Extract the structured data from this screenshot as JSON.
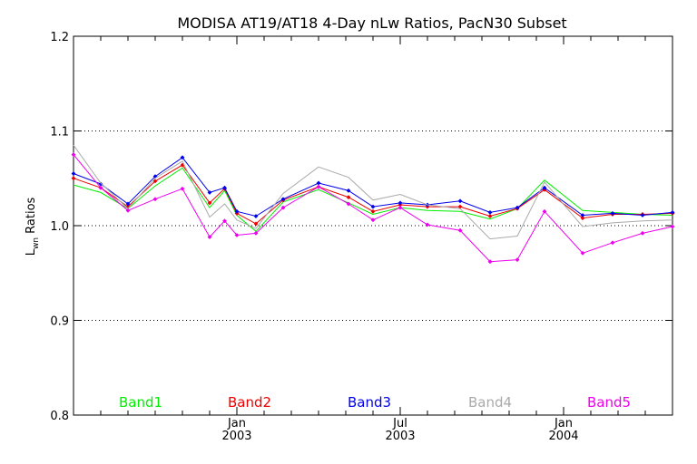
{
  "chart_data": {
    "type": "line",
    "title": "MODISA AT19/AT18 4-Day nLw Ratios, PacN30 Subset",
    "ylabel": "Lwn Ratios",
    "ylabel_main": "L",
    "ylabel_sub": "wn",
    "ylabel_rest": " Ratios",
    "xlabel": "",
    "ylim": [
      0.8,
      1.2
    ],
    "xlim": [
      0,
      22
    ],
    "yticks": [
      {
        "value": 0.8,
        "label": "0.8"
      },
      {
        "value": 0.9,
        "label": "0.9"
      },
      {
        "value": 1.0,
        "label": "1.0"
      },
      {
        "value": 1.1,
        "label": "1.1"
      },
      {
        "value": 1.2,
        "label": "1.2"
      }
    ],
    "grid_y": [
      0.9,
      1.0,
      1.1
    ],
    "grid": "dotted horizontal",
    "xtick_major": [
      {
        "x": 6,
        "label1": "Jan",
        "label2": "2003"
      },
      {
        "x": 12,
        "label1": "Jul",
        "label2": "2003"
      },
      {
        "x": 18,
        "label1": "Jan",
        "label2": "2004"
      }
    ],
    "xtick_minor": [
      1,
      2,
      3,
      4,
      5,
      7,
      8,
      9,
      10,
      11,
      13,
      14,
      15,
      16,
      17,
      19,
      20,
      21
    ],
    "x": [
      0,
      1,
      2,
      3,
      4,
      5,
      5.55,
      6,
      6.7,
      7.7,
      9,
      10.1,
      11,
      12,
      13,
      14.2,
      15.3,
      16.3,
      17.3,
      18.7,
      19.8,
      20.9,
      22
    ],
    "legend_position": "bottom",
    "series": [
      {
        "name": "Band1",
        "color": "#00ee00",
        "marker": false,
        "values": [
          1.043,
          1.035,
          1.018,
          1.042,
          1.061,
          1.019,
          1.037,
          1.011,
          0.994,
          1.025,
          1.038,
          1.024,
          1.012,
          1.019,
          1.016,
          1.015,
          1.007,
          1.018,
          1.048,
          1.016,
          1.014,
          1.012,
          1.011
        ]
      },
      {
        "name": "Band2",
        "color": "#ee0000",
        "marker": true,
        "values": [
          1.05,
          1.04,
          1.02,
          1.047,
          1.064,
          1.024,
          1.039,
          1.013,
          1.002,
          1.027,
          1.041,
          1.03,
          1.015,
          1.022,
          1.02,
          1.02,
          1.01,
          1.018,
          1.038,
          1.008,
          1.012,
          1.012,
          1.013
        ]
      },
      {
        "name": "Band3",
        "color": "#0000ee",
        "marker": true,
        "values": [
          1.055,
          1.044,
          1.023,
          1.052,
          1.072,
          1.035,
          1.04,
          1.015,
          1.01,
          1.028,
          1.045,
          1.037,
          1.02,
          1.024,
          1.022,
          1.026,
          1.014,
          1.019,
          1.04,
          1.011,
          1.013,
          1.011,
          1.014
        ]
      },
      {
        "name": "Band4",
        "color": "#aaaaaa",
        "marker": false,
        "values": [
          1.085,
          1.045,
          1.018,
          1.05,
          1.068,
          1.009,
          1.023,
          1.006,
          0.997,
          1.034,
          1.062,
          1.051,
          1.027,
          1.033,
          1.022,
          1.018,
          0.986,
          0.989,
          1.046,
          0.999,
          1.003,
          1.005,
          1.006
        ]
      },
      {
        "name": "Band5",
        "color": "#ee00ee",
        "marker": true,
        "values": [
          1.075,
          1.04,
          1.016,
          1.028,
          1.039,
          0.988,
          1.005,
          0.99,
          0.992,
          1.019,
          1.041,
          1.023,
          1.006,
          1.019,
          1.001,
          0.995,
          0.962,
          0.964,
          1.015,
          0.971,
          0.982,
          0.992,
          0.999
        ]
      }
    ]
  }
}
